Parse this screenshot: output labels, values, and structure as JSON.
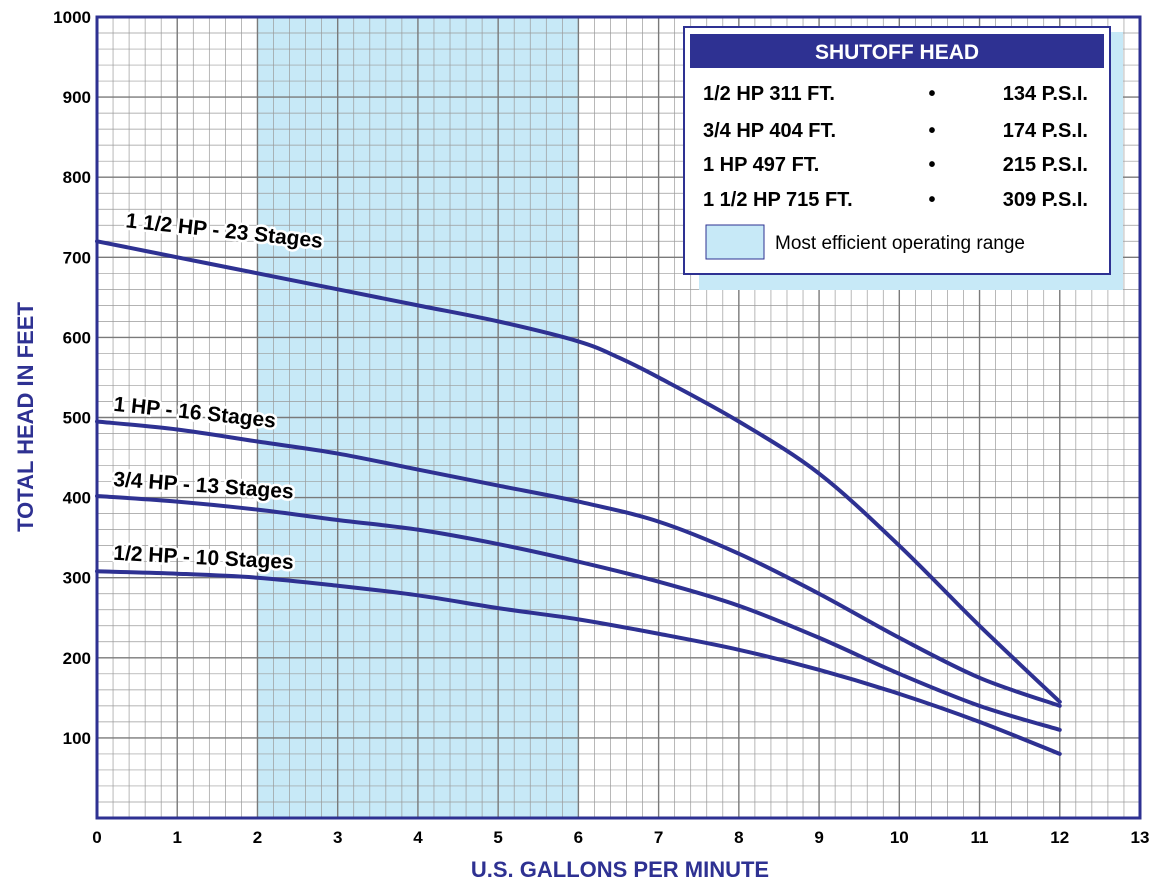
{
  "chart_data": {
    "type": "line",
    "xlabel": "U.S. GALLONS PER MINUTE",
    "ylabel": "TOTAL HEAD IN FEET",
    "xlim": [
      0,
      13
    ],
    "ylim": [
      0,
      1000
    ],
    "x_ticks": [
      "0",
      "1",
      "2",
      "3",
      "4",
      "5",
      "6",
      "7",
      "8",
      "9",
      "10",
      "11",
      "12",
      "13"
    ],
    "y_ticks": [
      "100",
      "200",
      "300",
      "400",
      "500",
      "600",
      "700",
      "800",
      "900",
      "1000"
    ],
    "grid": true,
    "efficient_range": {
      "x_start": 2,
      "x_end": 6
    },
    "colors": {
      "curve": "#2e3192",
      "range_fill": "#c7e9f7",
      "grid": "#9a9a9a",
      "frame": "#2e3192"
    },
    "series": [
      {
        "label": "1 1/2 HP - 23 Stages",
        "points": [
          [
            0,
            720
          ],
          [
            1,
            700
          ],
          [
            2,
            680
          ],
          [
            3,
            660
          ],
          [
            4,
            640
          ],
          [
            5,
            620
          ],
          [
            6,
            595
          ],
          [
            6.5,
            575
          ],
          [
            7,
            550
          ],
          [
            8,
            495
          ],
          [
            9,
            430
          ],
          [
            10,
            340
          ],
          [
            11,
            240
          ],
          [
            12,
            145
          ]
        ]
      },
      {
        "label": "1 HP - 16 Stages",
        "points": [
          [
            0,
            495
          ],
          [
            1,
            485
          ],
          [
            2,
            470
          ],
          [
            3,
            455
          ],
          [
            4,
            435
          ],
          [
            5,
            415
          ],
          [
            6,
            395
          ],
          [
            7,
            370
          ],
          [
            8,
            330
          ],
          [
            9,
            280
          ],
          [
            10,
            225
          ],
          [
            11,
            175
          ],
          [
            12,
            140
          ]
        ]
      },
      {
        "label": "3/4 HP - 13 Stages",
        "points": [
          [
            0,
            402
          ],
          [
            1,
            395
          ],
          [
            2,
            385
          ],
          [
            3,
            372
          ],
          [
            4,
            360
          ],
          [
            5,
            342
          ],
          [
            6,
            320
          ],
          [
            7,
            295
          ],
          [
            8,
            265
          ],
          [
            9,
            225
          ],
          [
            10,
            180
          ],
          [
            11,
            140
          ],
          [
            12,
            110
          ]
        ]
      },
      {
        "label": "1/2 HP - 10 Stages",
        "points": [
          [
            0,
            308
          ],
          [
            1,
            305
          ],
          [
            2,
            300
          ],
          [
            3,
            290
          ],
          [
            4,
            278
          ],
          [
            5,
            262
          ],
          [
            6,
            248
          ],
          [
            7,
            230
          ],
          [
            8,
            210
          ],
          [
            9,
            185
          ],
          [
            10,
            155
          ],
          [
            11,
            120
          ],
          [
            12,
            80
          ]
        ]
      }
    ],
    "legend": {
      "title": "SHUTOFF HEAD",
      "placement": "top-right",
      "rows": [
        {
          "hp": "1/2 HP 311 FT.",
          "bullet": "•",
          "psi": "134 P.S.I."
        },
        {
          "hp": "3/4 HP 404 FT.",
          "bullet": "•",
          "psi": "174 P.S.I."
        },
        {
          "hp": "1 HP 497 FT.",
          "bullet": "•",
          "psi": "215 P.S.I."
        },
        {
          "hp": "1 1/2 HP 715 FT.",
          "bullet": "•",
          "psi": "309 P.S.I."
        }
      ],
      "range_label": "Most efficient operating range"
    }
  }
}
